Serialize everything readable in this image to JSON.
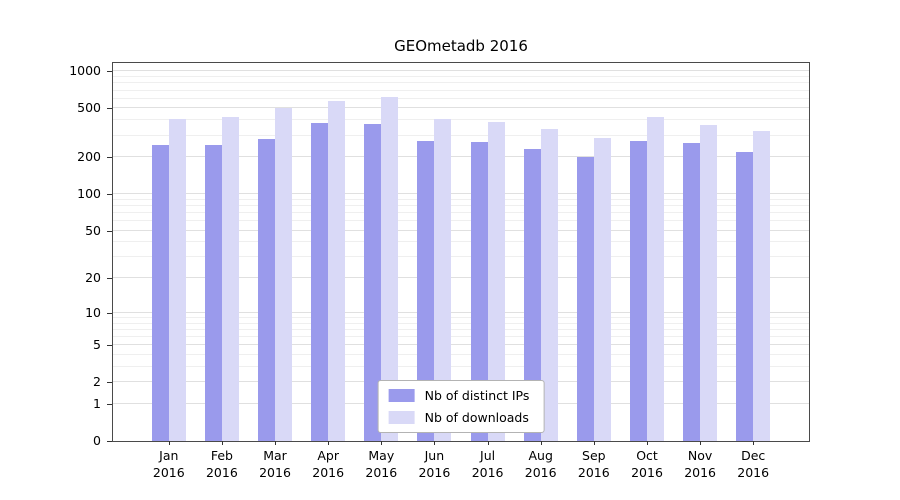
{
  "title": "GEOmetadb 2016",
  "chart_data": {
    "type": "bar",
    "title": "GEOmetadb 2016",
    "categories": [
      "Jan",
      "Feb",
      "Mar",
      "Apr",
      "May",
      "Jun",
      "Jul",
      "Aug",
      "Sep",
      "Oct",
      "Nov",
      "Dec"
    ],
    "x_tick_second_line": "2016",
    "series": [
      {
        "name": "Nb of distinct IPs",
        "color": "#9a9aec",
        "values": [
          250,
          250,
          280,
          380,
          375,
          270,
          265,
          235,
          200,
          270,
          260,
          220
        ]
      },
      {
        "name": "Nb of downloads",
        "color": "#d9d9f7",
        "values": [
          410,
          430,
          500,
          570,
          620,
          410,
          390,
          340,
          290,
          430,
          370,
          325
        ]
      }
    ],
    "y_ticks": [
      0,
      1,
      2,
      5,
      10,
      20,
      50,
      100,
      200,
      500,
      1000
    ],
    "y_minor_gridlines": [
      3,
      4,
      6,
      7,
      8,
      9,
      30,
      40,
      60,
      70,
      80,
      90,
      300,
      400,
      600,
      700,
      800,
      900
    ],
    "y_scale": "log1p",
    "ylim": [
      0,
      1170
    ],
    "grid": true,
    "legend_position": "lower center"
  },
  "colors": {
    "bar_distinct_ips": "#9a9aec",
    "bar_downloads": "#d9d9f7",
    "grid_major": "#e0e0e0",
    "grid_minor": "#efefef",
    "axis": "#4a4a4a",
    "background": "#ffffff"
  }
}
